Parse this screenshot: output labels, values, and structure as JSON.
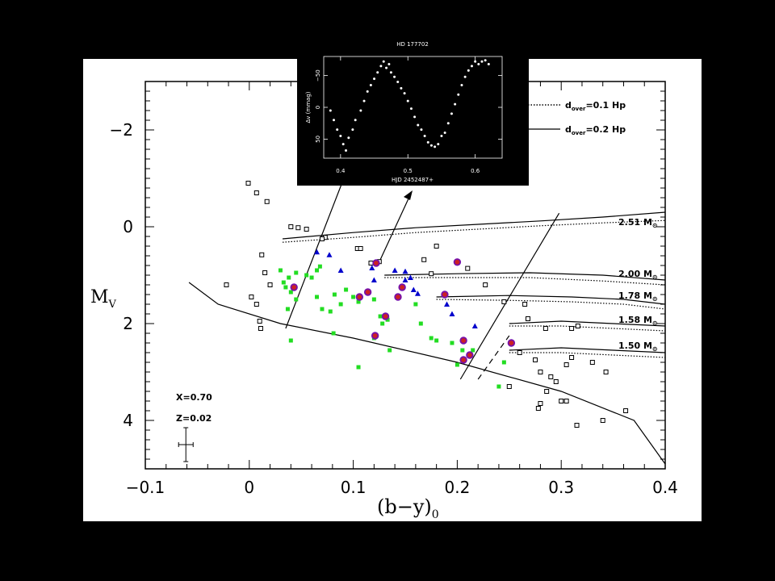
{
  "chart_data": [
    {
      "type": "scatter",
      "xlabel": "(b−y)",
      "xlabel_sub": "0",
      "ylabel": "M",
      "ylabel_sub": "V",
      "xlim": [
        -0.1,
        0.4
      ],
      "ylim": [
        5,
        -3
      ],
      "x_ticks": [
        -0.1,
        0,
        0.1,
        0.2,
        0.3,
        0.4
      ],
      "x_tick_labels": [
        "−0.1",
        "0",
        "0.1",
        "0.2",
        "0.3",
        "0.4"
      ],
      "y_ticks": [
        -2,
        0,
        2,
        4
      ],
      "y_tick_labels": [
        "−2",
        "0",
        "2",
        "4"
      ],
      "legend": [
        {
          "style": "dotted",
          "label": "d",
          "sub": "over",
          "rest": "=0.1 Hp"
        },
        {
          "style": "solid",
          "label": "d",
          "sub": "over",
          "rest": "=0.2 Hp"
        }
      ],
      "annotations": {
        "x_comp": "X=0.70",
        "z_comp": "Z=0.02"
      },
      "error_bar": {
        "x": -0.061,
        "y": 4.5,
        "dx": 0.007,
        "dy": 0.35
      },
      "tracks": [
        {
          "mass": "2.51",
          "label_y": -0.03,
          "solid": [
            [
              0.032,
              0.25
            ],
            [
              0.1,
              0.12
            ],
            [
              0.16,
              0.02
            ],
            [
              0.22,
              -0.05
            ],
            [
              0.28,
              -0.12
            ],
            [
              0.34,
              -0.2
            ],
            [
              0.4,
              -0.3
            ]
          ],
          "dotted": [
            [
              0.032,
              0.32
            ],
            [
              0.1,
              0.22
            ],
            [
              0.16,
              0.12
            ],
            [
              0.22,
              0.05
            ],
            [
              0.28,
              -0.02
            ],
            [
              0.34,
              -0.08
            ],
            [
              0.4,
              -0.13
            ]
          ]
        },
        {
          "mass": "2.00",
          "label_y": 1.03,
          "solid": [
            [
              0.13,
              1.0
            ],
            [
              0.2,
              0.97
            ],
            [
              0.27,
              0.95
            ],
            [
              0.34,
              1.0
            ],
            [
              0.4,
              1.1
            ]
          ],
          "dotted": [
            [
              0.13,
              1.05
            ],
            [
              0.2,
              1.05
            ],
            [
              0.27,
              1.05
            ],
            [
              0.34,
              1.12
            ],
            [
              0.4,
              1.2
            ]
          ]
        },
        {
          "mass": "1.78",
          "label_y": 1.48,
          "solid": [
            [
              0.18,
              1.45
            ],
            [
              0.25,
              1.42
            ],
            [
              0.31,
              1.45
            ],
            [
              0.36,
              1.5
            ],
            [
              0.4,
              1.6
            ]
          ],
          "dotted": [
            [
              0.18,
              1.5
            ],
            [
              0.25,
              1.52
            ],
            [
              0.31,
              1.55
            ],
            [
              0.36,
              1.6
            ],
            [
              0.4,
              1.7
            ]
          ]
        },
        {
          "mass": "1.58",
          "label_y": 1.98,
          "solid": [
            [
              0.25,
              2.0
            ],
            [
              0.3,
              1.95
            ],
            [
              0.35,
              2.0
            ],
            [
              0.4,
              2.05
            ]
          ],
          "dotted": [
            [
              0.25,
              2.05
            ],
            [
              0.3,
              2.05
            ],
            [
              0.35,
              2.1
            ],
            [
              0.4,
              2.15
            ]
          ]
        },
        {
          "mass": "1.50",
          "label_y": 2.52,
          "solid": [
            [
              0.25,
              2.55
            ],
            [
              0.3,
              2.5
            ],
            [
              0.35,
              2.55
            ],
            [
              0.4,
              2.6
            ]
          ],
          "dotted": [
            [
              0.25,
              2.6
            ],
            [
              0.3,
              2.6
            ],
            [
              0.35,
              2.65
            ],
            [
              0.4,
              2.7
            ]
          ]
        }
      ],
      "zams": [
        [
          -0.058,
          1.15
        ],
        [
          -0.03,
          1.6
        ],
        [
          0.03,
          2.0
        ],
        [
          0.1,
          2.3
        ],
        [
          0.2,
          2.8
        ],
        [
          0.3,
          3.4
        ],
        [
          0.37,
          4.0
        ],
        [
          0.4,
          4.9
        ]
      ],
      "edges": [
        {
          "style": "solid",
          "points": [
            [
              0.035,
              2.1
            ],
            [
              0.09,
              -0.95
            ]
          ]
        },
        {
          "style": "solid",
          "points": [
            [
              0.203,
              3.15
            ],
            [
              0.298,
              -0.28
            ]
          ]
        },
        {
          "style": "dashed",
          "points": [
            [
              0.22,
              3.15
            ],
            [
              0.25,
              2.25
            ]
          ]
        }
      ],
      "series": [
        {
          "name": "",
          "marker": "square",
          "color": "#ffffff",
          "points": [
            [
              -0.001,
              -0.9
            ],
            [
              0.007,
              -0.7
            ],
            [
              0.017,
              -0.52
            ],
            [
              0.04,
              0.0
            ],
            [
              0.047,
              0.02
            ],
            [
              0.055,
              0.05
            ],
            [
              0.073,
              0.22
            ],
            [
              0.07,
              0.25
            ],
            [
              0.002,
              1.45
            ],
            [
              0.007,
              1.6
            ],
            [
              0.01,
              1.95
            ],
            [
              0.011,
              2.1
            ],
            [
              0.02,
              1.2
            ],
            [
              0.015,
              0.95
            ],
            [
              -0.022,
              1.2
            ],
            [
              0.012,
              0.58
            ],
            [
              0.104,
              0.45
            ],
            [
              0.107,
              0.45
            ],
            [
              0.117,
              0.75
            ],
            [
              0.125,
              0.72
            ],
            [
              0.168,
              0.68
            ],
            [
              0.175,
              0.97
            ],
            [
              0.18,
              0.4
            ],
            [
              0.21,
              0.86
            ],
            [
              0.227,
              1.2
            ],
            [
              0.245,
              1.55
            ],
            [
              0.265,
              1.6
            ],
            [
              0.268,
              1.9
            ],
            [
              0.285,
              2.1
            ],
            [
              0.31,
              2.1
            ],
            [
              0.316,
              2.05
            ],
            [
              0.26,
              2.6
            ],
            [
              0.275,
              2.75
            ],
            [
              0.28,
              3.0
            ],
            [
              0.295,
              3.2
            ],
            [
              0.305,
              2.85
            ],
            [
              0.31,
              2.7
            ],
            [
              0.33,
              2.8
            ],
            [
              0.343,
              3.0
            ],
            [
              0.25,
              3.3
            ],
            [
              0.28,
              3.65
            ],
            [
              0.278,
              3.75
            ],
            [
              0.3,
              3.6
            ],
            [
              0.305,
              3.6
            ],
            [
              0.315,
              4.1
            ],
            [
              0.34,
              4.0
            ],
            [
              0.362,
              3.8
            ],
            [
              0.286,
              3.4
            ],
            [
              0.29,
              3.1
            ]
          ]
        },
        {
          "name": "",
          "marker": "square",
          "color": "#22dd22",
          "points": [
            [
              0.03,
              0.9
            ],
            [
              0.033,
              1.15
            ],
            [
              0.038,
              1.05
            ],
            [
              0.045,
              0.95
            ],
            [
              0.055,
              1.0
            ],
            [
              0.06,
              1.05
            ],
            [
              0.065,
              0.9
            ],
            [
              0.068,
              0.82
            ],
            [
              0.035,
              1.25
            ],
            [
              0.04,
              1.35
            ],
            [
              0.045,
              1.5
            ],
            [
              0.037,
              1.7
            ],
            [
              0.065,
              1.45
            ],
            [
              0.07,
              1.7
            ],
            [
              0.078,
              1.75
            ],
            [
              0.082,
              1.4
            ],
            [
              0.088,
              1.6
            ],
            [
              0.093,
              1.3
            ],
            [
              0.1,
              1.45
            ],
            [
              0.081,
              2.2
            ],
            [
              0.105,
              1.55
            ],
            [
              0.12,
              1.5
            ],
            [
              0.12,
              2.3
            ],
            [
              0.126,
              1.85
            ],
            [
              0.128,
              2.0
            ],
            [
              0.133,
              1.92
            ],
            [
              0.16,
              1.6
            ],
            [
              0.165,
              2.0
            ],
            [
              0.175,
              2.3
            ],
            [
              0.18,
              2.35
            ],
            [
              0.195,
              2.4
            ],
            [
              0.205,
              2.55
            ],
            [
              0.2,
              2.85
            ],
            [
              0.215,
              2.55
            ],
            [
              0.24,
              3.3
            ],
            [
              0.245,
              2.8
            ],
            [
              0.04,
              2.35
            ],
            [
              0.105,
              2.9
            ],
            [
              0.135,
              2.55
            ]
          ]
        },
        {
          "name": "",
          "marker": "triangle",
          "color": "#0000cc",
          "points": [
            [
              0.065,
              0.52
            ],
            [
              0.077,
              0.58
            ],
            [
              0.088,
              0.9
            ],
            [
              0.118,
              0.85
            ],
            [
              0.14,
              0.9
            ],
            [
              0.15,
              0.92
            ],
            [
              0.15,
              1.1
            ],
            [
              0.12,
              1.1
            ],
            [
              0.155,
              1.05
            ],
            [
              0.158,
              1.3
            ],
            [
              0.162,
              1.38
            ],
            [
              0.19,
              1.6
            ],
            [
              0.195,
              1.8
            ],
            [
              0.217,
              2.05
            ]
          ]
        },
        {
          "name": "",
          "marker": "circle",
          "color": "#cc2222",
          "outline": "#7711aa",
          "points": [
            [
              0.043,
              1.25
            ],
            [
              0.106,
              1.45
            ],
            [
              0.114,
              1.35
            ],
            [
              0.122,
              0.75
            ],
            [
              0.121,
              2.25
            ],
            [
              0.131,
              1.85
            ],
            [
              0.143,
              1.45
            ],
            [
              0.147,
              1.25
            ],
            [
              0.188,
              1.4
            ],
            [
              0.2,
              0.73
            ],
            [
              0.206,
              2.35
            ],
            [
              0.206,
              2.75
            ],
            [
              0.212,
              2.65
            ],
            [
              0.252,
              2.4
            ]
          ]
        }
      ]
    },
    {
      "type": "scatter",
      "title": "HD 177702",
      "xlabel": "HJD 2452487+",
      "ylabel": "Δv (mmag)",
      "xlim": [
        0.375,
        0.64
      ],
      "ylim": [
        80,
        -80
      ],
      "x_ticks": [
        0.4,
        0.5,
        0.6
      ],
      "x_tick_labels": [
        "0.4",
        "0.5",
        "0.6"
      ],
      "y_ticks": [
        -50,
        0,
        50
      ],
      "y_tick_labels": [
        "−50",
        "0",
        "50"
      ],
      "series": [
        {
          "name": "",
          "marker": "dot",
          "color": "#ffffff",
          "points": [
            [
              0.385,
              5
            ],
            [
              0.39,
              20
            ],
            [
              0.395,
              35
            ],
            [
              0.4,
              45
            ],
            [
              0.404,
              58
            ],
            [
              0.408,
              68
            ],
            [
              0.412,
              48
            ],
            [
              0.418,
              35
            ],
            [
              0.422,
              20
            ],
            [
              0.43,
              5
            ],
            [
              0.435,
              -10
            ],
            [
              0.44,
              -25
            ],
            [
              0.445,
              -35
            ],
            [
              0.45,
              -45
            ],
            [
              0.455,
              -55
            ],
            [
              0.46,
              -65
            ],
            [
              0.464,
              -72
            ],
            [
              0.468,
              -62
            ],
            [
              0.472,
              -68
            ],
            [
              0.475,
              -55
            ],
            [
              0.48,
              -48
            ],
            [
              0.485,
              -40
            ],
            [
              0.49,
              -30
            ],
            [
              0.495,
              -22
            ],
            [
              0.5,
              -10
            ],
            [
              0.505,
              2
            ],
            [
              0.51,
              15
            ],
            [
              0.515,
              28
            ],
            [
              0.52,
              35
            ],
            [
              0.525,
              45
            ],
            [
              0.53,
              55
            ],
            [
              0.535,
              60
            ],
            [
              0.54,
              62
            ],
            [
              0.545,
              58
            ],
            [
              0.55,
              45
            ],
            [
              0.555,
              40
            ],
            [
              0.56,
              25
            ],
            [
              0.565,
              10
            ],
            [
              0.57,
              -5
            ],
            [
              0.575,
              -20
            ],
            [
              0.58,
              -35
            ],
            [
              0.585,
              -48
            ],
            [
              0.59,
              -58
            ],
            [
              0.595,
              -65
            ],
            [
              0.6,
              -72
            ],
            [
              0.605,
              -68
            ],
            [
              0.61,
              -72
            ],
            [
              0.615,
              -74
            ],
            [
              0.62,
              -68
            ]
          ]
        }
      ]
    }
  ]
}
